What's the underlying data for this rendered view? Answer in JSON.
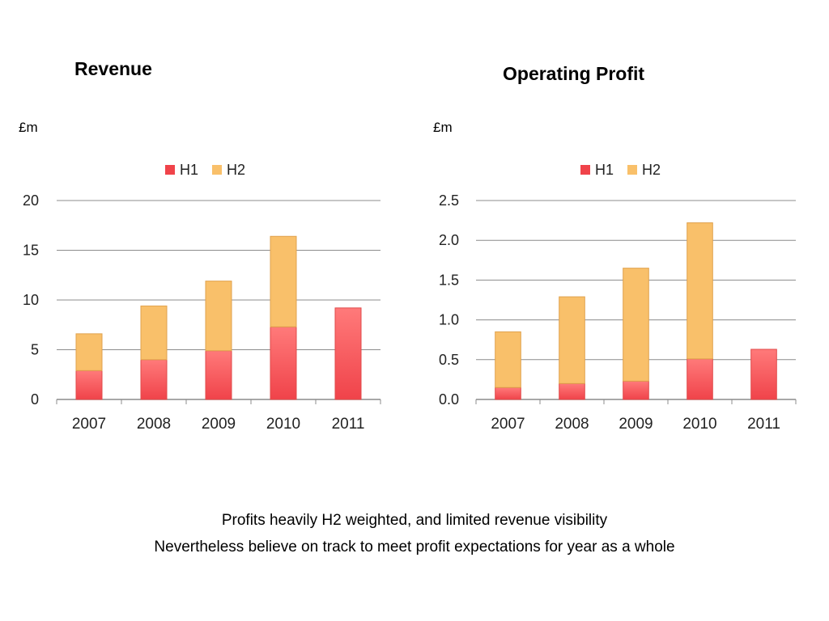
{
  "colors": {
    "h1": "#f0434a",
    "h1_light": "#ff7a7a",
    "h2": "#f9c06a",
    "grid": "#8c8c8c",
    "axis": "#8c8c8c"
  },
  "captions": [
    "Profits heavily H2 weighted, and limited revenue visibility",
    "Nevertheless believe on track to meet profit expectations for year as a whole"
  ],
  "chart_data": [
    {
      "type": "bar",
      "stacked": true,
      "title": "Revenue",
      "unit_label": "£m",
      "categories": [
        "2007",
        "2008",
        "2009",
        "2010",
        "2011"
      ],
      "series": [
        {
          "name": "H1",
          "values": [
            2.9,
            4.0,
            4.9,
            7.3,
            9.2
          ]
        },
        {
          "name": "H2",
          "values": [
            3.7,
            5.4,
            7.0,
            9.1,
            null
          ]
        }
      ],
      "ylim": [
        0,
        20
      ],
      "yticks": [
        "0",
        "5",
        "10",
        "15",
        "20"
      ],
      "ytick_values": [
        0,
        5,
        10,
        15,
        20
      ],
      "grid": true,
      "legend": "top"
    },
    {
      "type": "bar",
      "stacked": true,
      "title": "Operating Profit",
      "unit_label": "£m",
      "categories": [
        "2007",
        "2008",
        "2009",
        "2010",
        "2011"
      ],
      "series": [
        {
          "name": "H1",
          "values": [
            0.15,
            0.2,
            0.23,
            0.51,
            0.63
          ]
        },
        {
          "name": "H2",
          "values": [
            0.7,
            1.09,
            1.42,
            1.71,
            null
          ]
        }
      ],
      "ylim": [
        0,
        2.5
      ],
      "yticks": [
        "0.0",
        "0.5",
        "1.0",
        "1.5",
        "2.0",
        "2.5"
      ],
      "ytick_values": [
        0,
        0.5,
        1.0,
        1.5,
        2.0,
        2.5
      ],
      "grid": true,
      "legend": "top"
    }
  ]
}
